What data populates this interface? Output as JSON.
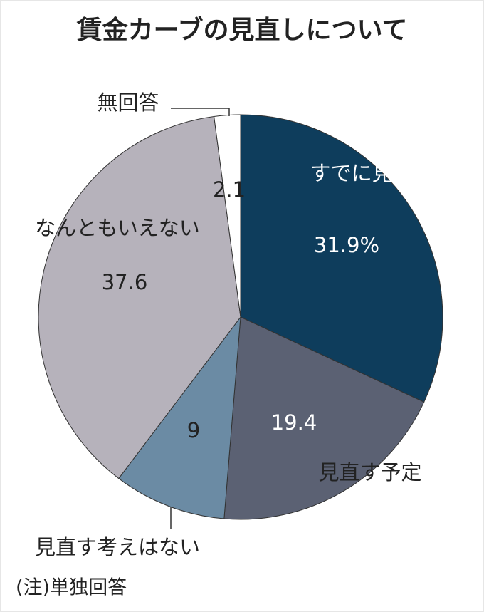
{
  "chart_data": {
    "type": "pie",
    "title": "賃金カーブの見直しについて",
    "categories": [
      "すでに見直した",
      "見直す予定",
      "見直す考えはない",
      "なんともいえない",
      "無回答"
    ],
    "values": [
      31.9,
      19.4,
      9,
      37.6,
      2.1
    ],
    "value_labels": [
      "31.9%",
      "19.4",
      "9",
      "37.6",
      "2.1"
    ],
    "colors": [
      "#0e3d5c",
      "#5b6173",
      "#6b8ba4",
      "#b6b2bb",
      "#ffffff"
    ],
    "note": "(注)単独回答"
  }
}
